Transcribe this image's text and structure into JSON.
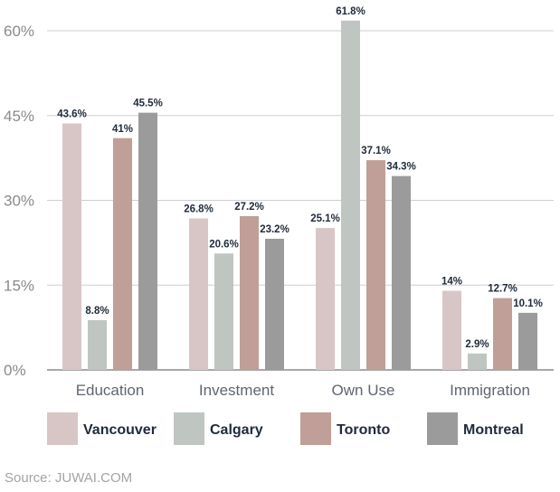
{
  "chart_data": {
    "type": "bar",
    "categories": [
      "Education",
      "Investment",
      "Own Use",
      "Immigration"
    ],
    "series": [
      {
        "name": "Vancouver",
        "color": "#d8c6c6",
        "values": [
          43.6,
          26.8,
          25.1,
          14
        ],
        "labels": [
          "43.6%",
          "26.8%",
          "25.1%",
          "14%"
        ]
      },
      {
        "name": "Calgary",
        "color": "#bfc6c2",
        "values": [
          8.8,
          20.6,
          61.8,
          2.9
        ],
        "labels": [
          "8.8%",
          "20.6%",
          "61.8%",
          "2.9%"
        ]
      },
      {
        "name": "Toronto",
        "color": "#bf9f97",
        "values": [
          41,
          27.2,
          37.1,
          12.7
        ],
        "labels": [
          "41%",
          "27.2%",
          "37.1%",
          "12.7%"
        ]
      },
      {
        "name": "Montreal",
        "color": "#9b9b9b",
        "values": [
          45.5,
          23.2,
          34.3,
          10.1
        ],
        "labels": [
          "45.5%",
          "23.2%",
          "34.3%",
          "10.1%"
        ]
      }
    ],
    "yticks": [
      0,
      15,
      30,
      45,
      60
    ],
    "ytick_labels": [
      "0%",
      "15%",
      "30%",
      "45%",
      "60%"
    ],
    "ylim": [
      0,
      60
    ],
    "grid": true,
    "legend_position": "bottom",
    "title": "",
    "xlabel": "",
    "ylabel": ""
  },
  "source": "Source: JUWAI.COM"
}
